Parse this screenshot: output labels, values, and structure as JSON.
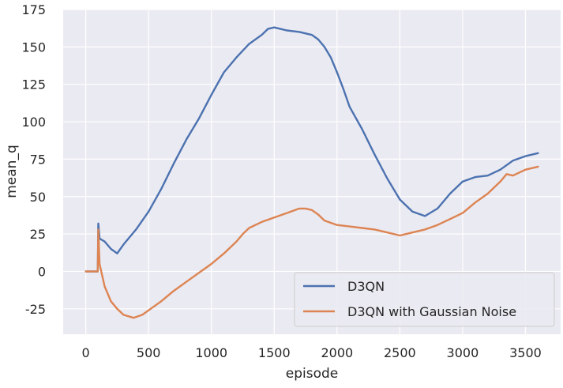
{
  "chart_data": {
    "type": "line",
    "title": "",
    "xlabel": "episode",
    "ylabel": "mean_q",
    "xlim": [
      -180,
      3780
    ],
    "ylim": [
      -42,
      175
    ],
    "x_ticks": [
      "0",
      "500",
      "1000",
      "1500",
      "2000",
      "2500",
      "3000",
      "3500"
    ],
    "y_ticks": [
      "-25",
      "0",
      "25",
      "50",
      "75",
      "100",
      "125",
      "150",
      "175"
    ],
    "grid": true,
    "legend_position": "lower-right",
    "series": [
      {
        "name": "D3QN",
        "color": "#4c72b0",
        "points": [
          [
            0,
            0
          ],
          [
            95,
            0
          ],
          [
            100,
            32
          ],
          [
            110,
            22
          ],
          [
            150,
            20
          ],
          [
            200,
            15
          ],
          [
            250,
            12
          ],
          [
            300,
            18
          ],
          [
            400,
            28
          ],
          [
            500,
            40
          ],
          [
            600,
            55
          ],
          [
            700,
            72
          ],
          [
            800,
            88
          ],
          [
            900,
            102
          ],
          [
            1000,
            118
          ],
          [
            1100,
            133
          ],
          [
            1200,
            143
          ],
          [
            1300,
            152
          ],
          [
            1400,
            158
          ],
          [
            1450,
            162
          ],
          [
            1500,
            163
          ],
          [
            1550,
            162
          ],
          [
            1600,
            161
          ],
          [
            1700,
            160
          ],
          [
            1800,
            158
          ],
          [
            1850,
            155
          ],
          [
            1900,
            150
          ],
          [
            1950,
            143
          ],
          [
            2000,
            133
          ],
          [
            2050,
            122
          ],
          [
            2100,
            110
          ],
          [
            2200,
            95
          ],
          [
            2300,
            78
          ],
          [
            2400,
            62
          ],
          [
            2500,
            48
          ],
          [
            2600,
            40
          ],
          [
            2700,
            37
          ],
          [
            2800,
            42
          ],
          [
            2900,
            52
          ],
          [
            3000,
            60
          ],
          [
            3100,
            63
          ],
          [
            3200,
            64
          ],
          [
            3300,
            68
          ],
          [
            3400,
            74
          ],
          [
            3500,
            77
          ],
          [
            3550,
            78
          ],
          [
            3600,
            79
          ]
        ]
      },
      {
        "name": "D3QN with Gaussian Noise",
        "color": "#dd8452",
        "points": [
          [
            0,
            0
          ],
          [
            95,
            0
          ],
          [
            100,
            28
          ],
          [
            110,
            5
          ],
          [
            150,
            -10
          ],
          [
            200,
            -20
          ],
          [
            250,
            -25
          ],
          [
            300,
            -29
          ],
          [
            380,
            -31
          ],
          [
            450,
            -29
          ],
          [
            500,
            -26
          ],
          [
            600,
            -20
          ],
          [
            700,
            -13
          ],
          [
            800,
            -7
          ],
          [
            900,
            -1
          ],
          [
            1000,
            5
          ],
          [
            1100,
            12
          ],
          [
            1200,
            20
          ],
          [
            1250,
            25
          ],
          [
            1300,
            29
          ],
          [
            1400,
            33
          ],
          [
            1500,
            36
          ],
          [
            1600,
            39
          ],
          [
            1700,
            42
          ],
          [
            1750,
            42
          ],
          [
            1800,
            41
          ],
          [
            1850,
            38
          ],
          [
            1900,
            34
          ],
          [
            2000,
            31
          ],
          [
            2100,
            30
          ],
          [
            2200,
            29
          ],
          [
            2300,
            28
          ],
          [
            2400,
            26
          ],
          [
            2500,
            24
          ],
          [
            2600,
            26
          ],
          [
            2700,
            28
          ],
          [
            2800,
            31
          ],
          [
            2900,
            35
          ],
          [
            3000,
            39
          ],
          [
            3100,
            46
          ],
          [
            3200,
            52
          ],
          [
            3300,
            60
          ],
          [
            3350,
            65
          ],
          [
            3400,
            64
          ],
          [
            3500,
            68
          ],
          [
            3600,
            70
          ]
        ]
      }
    ]
  }
}
